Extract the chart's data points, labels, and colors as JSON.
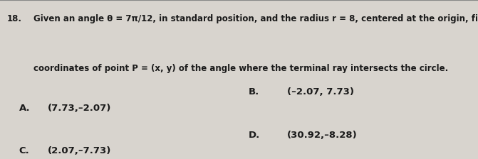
{
  "question_number": "18.",
  "line1_pre": "Given an angle θ = ",
  "line1_frac": "7π/12",
  "line1_post": ", in standard position, and the radius r = 8, centered at the origin, find the",
  "line2": "coordinates of point P = (x, y) of the angle where the terminal ray intersects the circle.",
  "option_A_label": "A.",
  "option_A_text": "(7.73,–2.07)",
  "option_B_label": "B.",
  "option_B_text": "(–2.07, 7.73)",
  "option_C_label": "C.",
  "option_C_text": "(2.07,–7.73)",
  "option_D_label": "D.",
  "option_D_text": "(30.92,–8.28)",
  "bg_color": "#d8d4ce",
  "text_color": "#1a1a1a",
  "font_size_q": 8.5,
  "font_size_opt": 9.5
}
